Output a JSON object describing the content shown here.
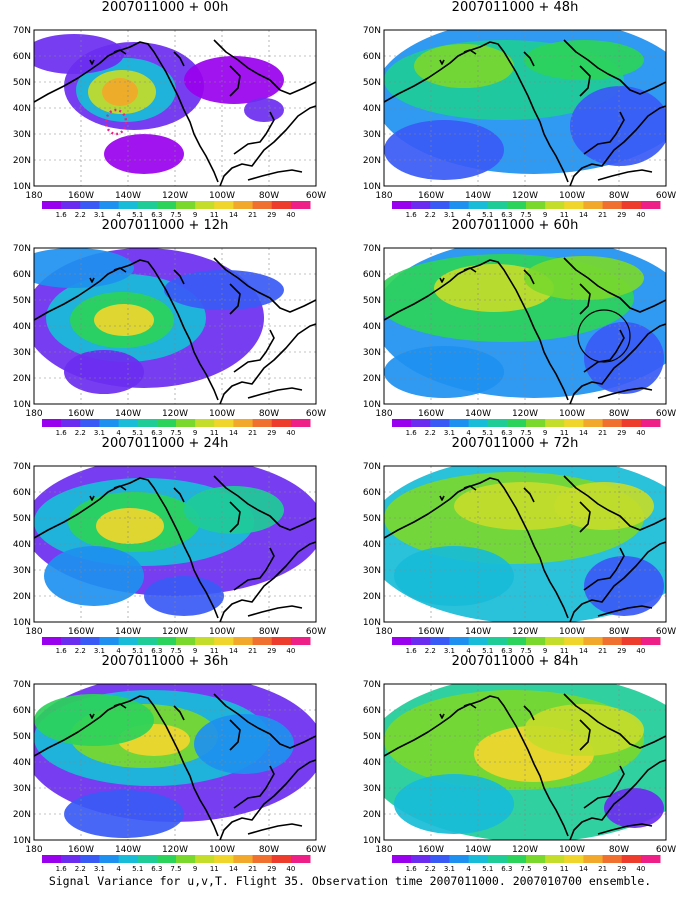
{
  "panels": [
    {
      "title": "2007011000 + 00h",
      "level": 0
    },
    {
      "title": "2007011000 + 12h",
      "level": 1
    },
    {
      "title": "2007011000 + 24h",
      "level": 2
    },
    {
      "title": "2007011000 + 36h",
      "level": 3
    },
    {
      "title": "2007011000 + 48h",
      "level": 4
    },
    {
      "title": "2007011000 + 60h",
      "level": 5
    },
    {
      "title": "2007011000 + 72h",
      "level": 6
    },
    {
      "title": "2007011000 + 84h",
      "level": 7
    }
  ],
  "axes": {
    "lat_labels": [
      "70N",
      "60N",
      "50N",
      "40N",
      "30N",
      "20N",
      "10N"
    ],
    "lon_labels": [
      "180",
      "160W",
      "140W",
      "120W",
      "100W",
      "80W",
      "60W"
    ]
  },
  "colorbar": {
    "labels": [
      "1.6",
      "2.2",
      "3.1",
      "4",
      "5.1",
      "6.3",
      "7.5",
      "9",
      "11",
      "14",
      "21",
      "29",
      "40"
    ],
    "colors": [
      "#9900ee",
      "#6b2cf0",
      "#3a5af6",
      "#1e90f0",
      "#18bcd8",
      "#1ecc98",
      "#2cd35a",
      "#7ad82c",
      "#c4dc2a",
      "#f0d62c",
      "#f2a82a",
      "#f07030",
      "#ee3c2c",
      "#ee2088"
    ]
  },
  "caption": "Signal Variance for u,v,T. Flight 35. Observation time 2007011000. 2007010700 ensemble."
}
